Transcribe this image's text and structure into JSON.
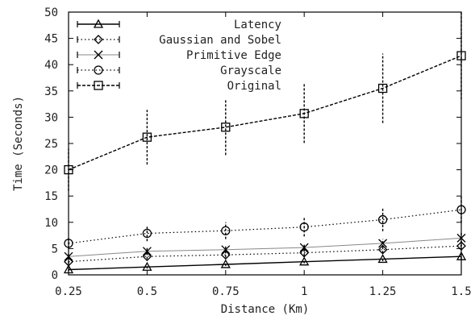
{
  "chart_data": {
    "type": "line",
    "title": "",
    "xlabel": "Distance (Km)",
    "ylabel": "Time (Seconds)",
    "x": [
      0.25,
      0.5,
      0.75,
      1,
      1.25,
      1.5
    ],
    "xticks": [
      "0.25",
      "0.5",
      "0.75",
      "1",
      "1.25",
      "1.5"
    ],
    "yticks": [
      "0",
      "5",
      "10",
      "15",
      "20",
      "25",
      "30",
      "35",
      "40",
      "45",
      "50"
    ],
    "xlim": [
      0.25,
      1.5
    ],
    "ylim": [
      0,
      50
    ],
    "grid": false,
    "legend_position": "top-left",
    "series": [
      {
        "name": "Latency",
        "marker": "triangle",
        "line_style": "solid",
        "values": [
          1.0,
          1.5,
          2.0,
          2.5,
          3.0,
          3.5
        ],
        "errors": [
          0.3,
          0.3,
          0.3,
          0.3,
          0.4,
          0.5
        ]
      },
      {
        "name": "Gaussian and Sobel",
        "marker": "diamond",
        "line_style": "dotted",
        "values": [
          2.5,
          3.5,
          3.8,
          4.2,
          4.8,
          5.5
        ],
        "errors": [
          0.4,
          0.5,
          0.5,
          0.6,
          0.7,
          0.8
        ]
      },
      {
        "name": "Primitive Edge",
        "marker": "cross",
        "line_style": "light",
        "values": [
          3.5,
          4.5,
          4.8,
          5.2,
          6.0,
          7.0
        ],
        "errors": [
          0.5,
          0.6,
          0.6,
          0.7,
          0.8,
          1.0
        ]
      },
      {
        "name": "Grayscale",
        "marker": "circle",
        "line_style": "dotted",
        "values": [
          6.0,
          7.9,
          8.4,
          9.1,
          10.5,
          12.4
        ],
        "errors": [
          1.0,
          1.5,
          1.6,
          1.8,
          2.2,
          2.5
        ]
      },
      {
        "name": "Original",
        "marker": "square",
        "line_style": "dashed",
        "values": [
          20.0,
          26.2,
          28.1,
          30.7,
          35.5,
          41.7
        ],
        "errors": [
          4.0,
          5.2,
          5.3,
          5.6,
          6.6,
          8.3
        ]
      }
    ]
  }
}
